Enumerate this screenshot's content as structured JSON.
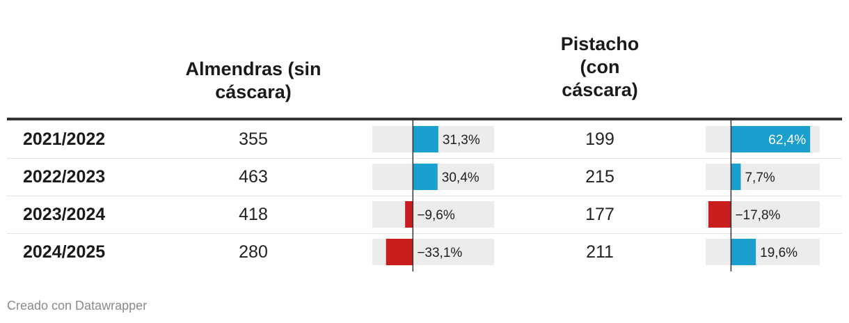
{
  "headers": {
    "row_label": "",
    "almendras": [
      "Almendras (sin",
      "cáscara)"
    ],
    "pistacho": [
      "Pistacho",
      "(con",
      "cáscara)"
    ]
  },
  "rows": [
    {
      "season": "2021/2022",
      "almendras": "355",
      "pistacho": "199"
    },
    {
      "season": "2022/2023",
      "almendras": "463",
      "pistacho": "215"
    },
    {
      "season": "2023/2024",
      "almendras": "418",
      "pistacho": "177"
    },
    {
      "season": "2024/2025",
      "almendras": "280",
      "pistacho": "211"
    }
  ],
  "chart_data": {
    "type": "table",
    "columns": [
      "",
      "Almendras (sin cáscara)",
      "",
      "Pistacho (con cáscara)",
      ""
    ],
    "categories": [
      "2021/2022",
      "2022/2023",
      "2023/2024",
      "2024/2025"
    ],
    "series": [
      {
        "name": "Almendras (sin cáscara)",
        "values": [
          355,
          463,
          418,
          280
        ],
        "change_pct": [
          31.3,
          30.4,
          -9.6,
          -33.1
        ],
        "change_labels": [
          "31,3%",
          "30,4%",
          "−9,6%",
          "−33,1%"
        ],
        "change_range": [
          -50,
          100
        ]
      },
      {
        "name": "Pistacho (con cáscara)",
        "values": [
          199,
          215,
          177,
          211
        ],
        "change_pct": [
          62.4,
          7.7,
          -17.8,
          19.6
        ],
        "change_labels": [
          "62,4%",
          "7,7%",
          "−17,8%",
          "19,6%"
        ],
        "change_range": [
          -20,
          70
        ]
      }
    ]
  },
  "colors": {
    "positive": "#1a9fce",
    "negative": "#c71e1d",
    "track": "#ececec",
    "axis": "#333333",
    "text": "#1f1f1f",
    "footer": "#8a8a8a"
  },
  "footer": "Creado con Datawrapper"
}
